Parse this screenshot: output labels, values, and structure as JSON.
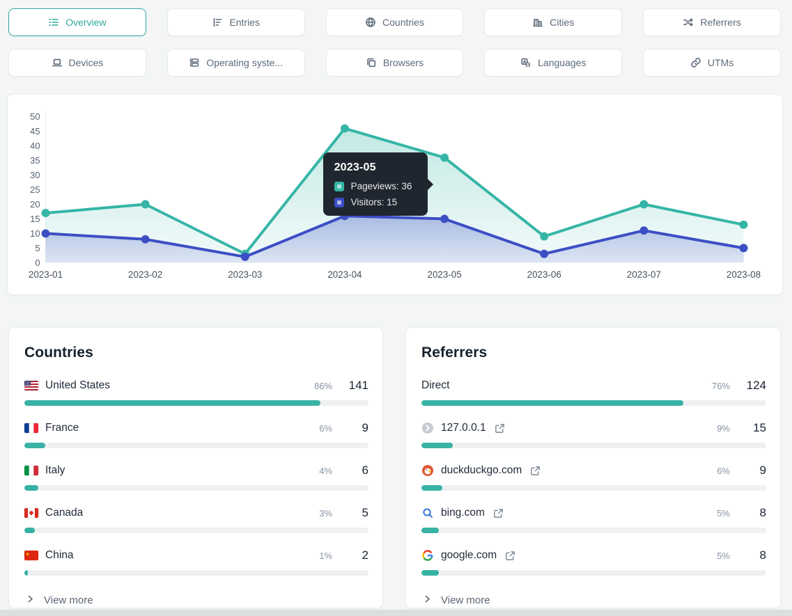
{
  "colors": {
    "accent_teal": "#2fa89f",
    "bar_fill": "#38b2a4",
    "pageviews_line": "#35b5a6",
    "visitors_line": "#3c4ec4",
    "tooltip_bg": "#20262f"
  },
  "tabs": [
    {
      "label": "Overview",
      "icon": "list-icon",
      "active": true
    },
    {
      "label": "Entries",
      "icon": "bar-chart-icon",
      "active": false
    },
    {
      "label": "Countries",
      "icon": "globe-icon",
      "active": false
    },
    {
      "label": "Cities",
      "icon": "building-icon",
      "active": false
    },
    {
      "label": "Referrers",
      "icon": "shuffle-icon",
      "active": false
    },
    {
      "label": "Devices",
      "icon": "laptop-icon",
      "active": false
    },
    {
      "label": "Operating syste...",
      "icon": "server-icon",
      "active": false
    },
    {
      "label": "Browsers",
      "icon": "windows-icon",
      "active": false
    },
    {
      "label": "Languages",
      "icon": "translate-icon",
      "active": false
    },
    {
      "label": "UTMs",
      "icon": "link-icon",
      "active": false
    }
  ],
  "chart_data": {
    "type": "line",
    "categories": [
      "2023-01",
      "2023-02",
      "2023-03",
      "2023-04",
      "2023-05",
      "2023-06",
      "2023-07",
      "2023-08"
    ],
    "series": [
      {
        "name": "Pageviews",
        "color": "#35b5a6",
        "values": [
          17,
          20,
          3,
          46,
          36,
          9,
          20,
          13
        ]
      },
      {
        "name": "Visitors",
        "color": "#3c4ec4",
        "values": [
          10,
          8,
          2,
          16,
          15,
          3,
          11,
          5
        ]
      }
    ],
    "ylim": [
      0,
      50
    ],
    "ytick_step": 5,
    "grid": false,
    "legend_position": "none",
    "tooltip": {
      "index": 4,
      "title": "2023-05",
      "rows": [
        {
          "label": "Pageviews",
          "value": 36
        },
        {
          "label": "Visitors",
          "value": 15
        }
      ]
    }
  },
  "countries": {
    "title": "Countries",
    "view_more": "View more",
    "rows": [
      {
        "flag": "us",
        "name": "United States",
        "percent": "86%",
        "count": "141",
        "bar": 86
      },
      {
        "flag": "fr",
        "name": "France",
        "percent": "6%",
        "count": "9",
        "bar": 6
      },
      {
        "flag": "it",
        "name": "Italy",
        "percent": "4%",
        "count": "6",
        "bar": 4
      },
      {
        "flag": "ca",
        "name": "Canada",
        "percent": "3%",
        "count": "5",
        "bar": 3
      },
      {
        "flag": "cn",
        "name": "China",
        "percent": "1%",
        "count": "2",
        "bar": 1
      }
    ]
  },
  "referrers": {
    "title": "Referrers",
    "view_more": "View more",
    "rows": [
      {
        "favicon": "",
        "name": "Direct",
        "percent": "76%",
        "count": "124",
        "bar": 76,
        "external": false
      },
      {
        "favicon": "default",
        "name": "127.0.0.1",
        "percent": "9%",
        "count": "15",
        "bar": 9,
        "external": true
      },
      {
        "favicon": "duckduckgo",
        "name": "duckduckgo.com",
        "percent": "6%",
        "count": "9",
        "bar": 6,
        "external": true
      },
      {
        "favicon": "bing",
        "name": "bing.com",
        "percent": "5%",
        "count": "8",
        "bar": 5,
        "external": true
      },
      {
        "favicon": "google",
        "name": "google.com",
        "percent": "5%",
        "count": "8",
        "bar": 5,
        "external": true
      }
    ]
  }
}
